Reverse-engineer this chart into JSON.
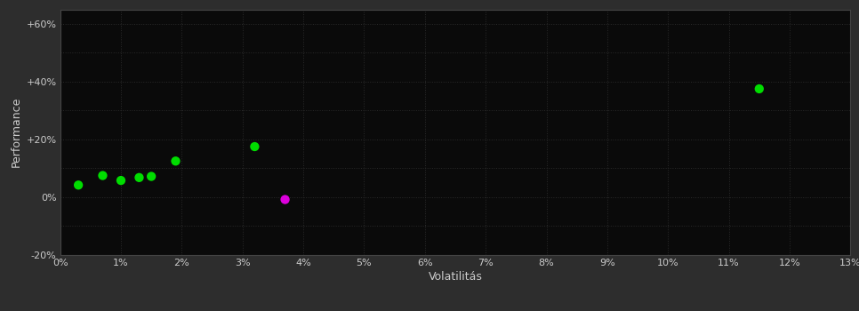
{
  "background_color": "#2d2d2d",
  "plot_bg_color": "#0a0a0a",
  "grid_color": "#2a2a2a",
  "text_color": "#cccccc",
  "xlabel": "Volatilitás",
  "ylabel": "Performance",
  "xlim": [
    0,
    0.13
  ],
  "ylim": [
    -0.2,
    0.65
  ],
  "xtick_values": [
    0,
    0.01,
    0.02,
    0.03,
    0.04,
    0.05,
    0.06,
    0.07,
    0.08,
    0.09,
    0.1,
    0.11,
    0.12,
    0.13
  ],
  "ytick_values": [
    -0.2,
    -0.1,
    0.0,
    0.1,
    0.2,
    0.3,
    0.4,
    0.5,
    0.6
  ],
  "ytick_labels": [
    "-20%",
    "",
    "0%",
    "",
    "+20%",
    "",
    "+40%",
    "",
    "+60%"
  ],
  "xtick_labels": [
    "0%",
    "1%",
    "2%",
    "3%",
    "4%",
    "5%",
    "6%",
    "7%",
    "8%",
    "9%",
    "10%",
    "11%",
    "12%",
    "13%"
  ],
  "green_points": [
    [
      0.003,
      0.042
    ],
    [
      0.007,
      0.075
    ],
    [
      0.01,
      0.058
    ],
    [
      0.013,
      0.068
    ],
    [
      0.015,
      0.072
    ],
    [
      0.019,
      0.125
    ],
    [
      0.032,
      0.175
    ],
    [
      0.115,
      0.375
    ]
  ],
  "magenta_points": [
    [
      0.037,
      -0.008
    ]
  ],
  "green_color": "#00dd00",
  "magenta_color": "#dd00dd",
  "marker_size": 55,
  "fontsize_ticks": 8,
  "fontsize_label": 9
}
